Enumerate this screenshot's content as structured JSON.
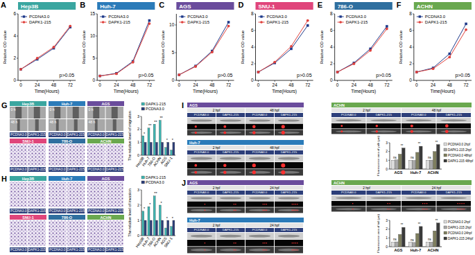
{
  "chart_data": [
    {
      "type": "line",
      "panel_label": "A",
      "title": "Hep3B",
      "x_label": "Time(Hours)",
      "y_label": "Relative OD value",
      "x": [
        0,
        24,
        48,
        72
      ],
      "xlim": [
        -4,
        80
      ],
      "xticks": [
        0,
        24,
        48,
        72
      ],
      "ylim": [
        0,
        6
      ],
      "yticks": [
        0,
        2,
        4,
        6
      ],
      "legend": "upper-left",
      "annotations": [
        "p>0.05"
      ],
      "series": [
        {
          "name": "PCDNA3.0",
          "color": "#1f3a8a",
          "marker": "square",
          "values": [
            1,
            1.9,
            2.9,
            4.8
          ]
        },
        {
          "name": "DAPK1-215",
          "color": "#e0413c",
          "marker": "circle",
          "values": [
            1,
            2.0,
            3.0,
            4.9
          ]
        }
      ]
    },
    {
      "type": "line",
      "panel_label": "B",
      "title": "Huh-7",
      "x_label": "Time(Hours)",
      "y_label": "Relative OD value",
      "x": [
        0,
        24,
        48,
        72
      ],
      "xlim": [
        -4,
        80
      ],
      "xticks": [
        0,
        24,
        48,
        72
      ],
      "ylim": [
        0,
        15
      ],
      "yticks": [
        0,
        5,
        10,
        15
      ],
      "legend": "upper-left",
      "annotations": [
        "p>0.05"
      ],
      "series": [
        {
          "name": "PCDNA3.0",
          "color": "#1f3a8a",
          "marker": "square",
          "values": [
            1,
            1.6,
            4.3,
            13.5
          ]
        },
        {
          "name": "DAPK1-215",
          "color": "#e0413c",
          "marker": "circle",
          "values": [
            1,
            1.5,
            4.1,
            12.8
          ]
        }
      ]
    },
    {
      "type": "line",
      "panel_label": "C",
      "title": "AGS",
      "x_label": "Time(Hours)",
      "y_label": "Relative OD value",
      "x": [
        0,
        24,
        48,
        72
      ],
      "xlim": [
        -4,
        80
      ],
      "xticks": [
        0,
        24,
        48,
        72
      ],
      "ylim": [
        0,
        12
      ],
      "yticks": [
        0,
        5,
        10
      ],
      "legend": "upper-left",
      "annotations": [
        "p>0.05"
      ],
      "series": [
        {
          "name": "PCDNA3.0",
          "color": "#1f3a8a",
          "marker": "square",
          "values": [
            1,
            2.6,
            5.3,
            10.5
          ]
        },
        {
          "name": "DAPK1-215",
          "color": "#e0413c",
          "marker": "circle",
          "values": [
            1,
            2.5,
            5.1,
            9.8
          ]
        }
      ]
    },
    {
      "type": "line",
      "panel_label": "D",
      "title": "SNU-1",
      "x_label": "Time(Hours)",
      "y_label": "Relative OD value",
      "x": [
        0,
        24,
        48,
        72
      ],
      "xlim": [
        -4,
        80
      ],
      "xticks": [
        0,
        24,
        48,
        72
      ],
      "ylim": [
        0,
        8
      ],
      "yticks": [
        0,
        2,
        4,
        6,
        8
      ],
      "legend": "upper-left",
      "annotations": [
        "p>0.05"
      ],
      "series": [
        {
          "name": "PCDNA3.0",
          "color": "#1f3a8a",
          "marker": "square",
          "values": [
            1,
            2.1,
            3.8,
            6.6
          ]
        },
        {
          "name": "DAPK1-215",
          "color": "#e0413c",
          "marker": "circle",
          "values": [
            1,
            2.2,
            4.1,
            7.2
          ]
        }
      ]
    },
    {
      "type": "line",
      "panel_label": "E",
      "title": "786-O",
      "x_label": "Time(Hours)",
      "y_label": "Relative OD value",
      "x": [
        0,
        24,
        48,
        72
      ],
      "xlim": [
        -4,
        80
      ],
      "xticks": [
        0,
        24,
        48,
        72
      ],
      "ylim": [
        0,
        8
      ],
      "yticks": [
        0,
        2,
        4,
        6,
        8
      ],
      "legend": "upper-left",
      "annotations": [
        "p>0.05"
      ],
      "series": [
        {
          "name": "PCDNA3.0",
          "color": "#1f3a8a",
          "marker": "square",
          "values": [
            1,
            2.1,
            3.8,
            6.5
          ]
        },
        {
          "name": "DAPK1-215",
          "color": "#e0413c",
          "marker": "circle",
          "values": [
            1,
            2.0,
            3.6,
            6.2
          ]
        }
      ]
    },
    {
      "type": "line",
      "panel_label": "F",
      "title": "ACHN",
      "x_label": "Time(Hours)",
      "y_label": "Relative OD value",
      "x": [
        0,
        24,
        48,
        72
      ],
      "xlim": [
        -4,
        80
      ],
      "xticks": [
        0,
        24,
        48,
        72
      ],
      "ylim": [
        0,
        8
      ],
      "yticks": [
        0,
        2,
        4,
        6,
        8
      ],
      "legend": "upper-left",
      "annotations": [
        "p>0.05"
      ],
      "series": [
        {
          "name": "PCDNA3.0",
          "color": "#1f3a8a",
          "marker": "square",
          "values": [
            1,
            1.5,
            3.2,
            6.8
          ]
        },
        {
          "name": "DAPK1-215",
          "color": "#e0413c",
          "marker": "circle",
          "values": [
            1,
            1.4,
            2.8,
            6.1
          ]
        }
      ]
    },
    {
      "type": "bar",
      "y_label": "The relative level of migration",
      "categories": [
        "Hep3B",
        "Huh-7",
        "786-O",
        "ACHN",
        "AGS",
        "SNU-1"
      ],
      "ylim": [
        0,
        3
      ],
      "yticks": [
        0,
        1,
        2,
        3
      ],
      "legend": "top",
      "annotations": [
        "*",
        "**",
        "**",
        "**",
        "*",
        "*"
      ],
      "series": [
        {
          "name": "DAPK1-215",
          "color": "#3fb4b0",
          "values": [
            1.5,
            2.1,
            2.4,
            2.7,
            0.6,
            0.4
          ]
        },
        {
          "name": "PCDNA3.0",
          "color": "#2d3f7a",
          "values": [
            1,
            1,
            1,
            1,
            1,
            1
          ]
        }
      ]
    },
    {
      "type": "bar",
      "y_label": "The relative level of invasion",
      "categories": [
        "Hep3B",
        "Huh-7",
        "786-O",
        "ACHN",
        "AGS",
        "SNU-1"
      ],
      "ylim": [
        0,
        3
      ],
      "yticks": [
        0,
        1,
        2,
        3
      ],
      "legend": "top",
      "annotations": [
        "*",
        "*",
        "**",
        "*",
        "*",
        "*"
      ],
      "series": [
        {
          "name": "DAPK1-215",
          "color": "#3fb4b0",
          "values": [
            1.6,
            1.9,
            2.6,
            2.0,
            0.5,
            0.6
          ]
        },
        {
          "name": "PCDNA3.0",
          "color": "#2d3f7a",
          "values": [
            1,
            1,
            1,
            1,
            1,
            1
          ]
        }
      ]
    },
    {
      "type": "bar",
      "y_label": "Fluorescence area of yolk (μm)",
      "categories": [
        "AGS",
        "Huh-7",
        "ACHN"
      ],
      "ylim": [
        0,
        3
      ],
      "yticks": [
        0,
        1,
        2,
        3
      ],
      "legend": "right",
      "annotations": [
        [
          "ns",
          "**"
        ],
        [
          "ns",
          "**"
        ],
        [
          "ns",
          "**"
        ]
      ],
      "series": [
        {
          "name": "PCDNA3.0 2hpf",
          "color": "#dcdcdc",
          "values": [
            1.0,
            1.0,
            1.0
          ]
        },
        {
          "name": "DAPK1-215 2hpf",
          "color": "#a8a8a8",
          "values": [
            1.05,
            0.98,
            1.02
          ]
        },
        {
          "name": "PCDNA3.0 48hpf",
          "color": "#7f7f5f",
          "values": [
            1.7,
            1.9,
            2.0
          ]
        },
        {
          "name": "DAPK1-215 48hpf",
          "color": "#3a3a3a",
          "values": [
            2.4,
            2.6,
            2.8
          ]
        }
      ]
    },
    {
      "type": "bar",
      "y_label": "Fluorescence area of tail (μm)",
      "categories": [
        "AGS",
        "Huh-7",
        "ACHN"
      ],
      "ylim": [
        0,
        3
      ],
      "yticks": [
        0,
        1,
        2,
        3
      ],
      "legend": "right",
      "annotations": [
        [
          "ns",
          "**"
        ],
        [
          "ns",
          "**"
        ],
        [
          "ns",
          "**"
        ]
      ],
      "series": [
        {
          "name": "PCDNA3.0 2hpf",
          "color": "#dcdcdc",
          "values": [
            0.5,
            0.5,
            0.5
          ]
        },
        {
          "name": "DAPK1-215 2hpf",
          "color": "#a8a8a8",
          "values": [
            0.55,
            0.48,
            0.52
          ]
        },
        {
          "name": "PCDNA3.0 24hpf",
          "color": "#7f7f5f",
          "values": [
            1.4,
            1.5,
            1.8
          ]
        },
        {
          "name": "DAPK1-215 24hpf",
          "color": "#3a3a3a",
          "values": [
            2.2,
            2.3,
            2.7
          ]
        }
      ]
    }
  ],
  "image_panels": [
    {
      "panel_label": "G",
      "row_labels": [
        "0 h",
        "48 h"
      ],
      "groups": [
        {
          "title": "Hep3B",
          "color": "#3aa6a0",
          "type": "wound",
          "conditions": [
            "PCDNA3.0",
            "DAPK1-215"
          ]
        },
        {
          "title": "Huh-7",
          "color": "#2b7bb9",
          "type": "wound",
          "conditions": [
            "PCDNA3.0",
            "DAPK1-215"
          ]
        },
        {
          "title": "AGS",
          "color": "#6a4c9c",
          "type": "wound",
          "conditions": [
            "PCDNA3.0",
            "DAPK1-215"
          ]
        },
        {
          "title": "SNU-1",
          "color": "#e0457b",
          "type": "transwell",
          "conditions": [
            "PCDNA3.0",
            "DAPK1-215"
          ]
        },
        {
          "title": "786-O",
          "color": "#2f6f9f",
          "type": "transwell",
          "conditions": [
            "PCDNA3.0",
            "DAPK1-215"
          ]
        },
        {
          "title": "ACHN",
          "color": "#6aa84f",
          "type": "transwell",
          "conditions": [
            "PCDNA3.0",
            "DAPK1-215"
          ]
        }
      ]
    },
    {
      "panel_label": "H",
      "groups": [
        {
          "title": "Hep3B",
          "color": "#3aa6a0",
          "type": "transwell",
          "conditions": [
            "PCDNA3.0",
            "DAPK1-215"
          ]
        },
        {
          "title": "Huh-7",
          "color": "#2b7bb9",
          "type": "transwell",
          "conditions": [
            "PCDNA3.0",
            "DAPK1-215"
          ]
        },
        {
          "title": "AGS",
          "color": "#6a4c9c",
          "type": "transwell",
          "conditions": [
            "PCDNA3.0",
            "DAPK1-215"
          ]
        },
        {
          "title": "SNU-1",
          "color": "#e0457b",
          "type": "transwell",
          "conditions": [
            "PCDNA3.0",
            "DAPK1-215"
          ]
        },
        {
          "title": "786-O",
          "color": "#2f6f9f",
          "type": "transwell",
          "conditions": [
            "PCDNA3.0",
            "DAPK1-215"
          ]
        },
        {
          "title": "ACHN",
          "color": "#6aa84f",
          "type": "transwell",
          "conditions": [
            "PCDNA3.0",
            "DAPK1-215"
          ]
        }
      ]
    },
    {
      "panel_label": "I",
      "groups": [
        {
          "title": "AGS",
          "color": "#6a4c9c",
          "type": "zebrafish-yolk",
          "times": [
            "2 hpf",
            "48 hpf"
          ],
          "conditions": [
            "PCDNA3.0",
            "DAPK1-215"
          ]
        },
        {
          "title": "ACHN",
          "color": "#6aa84f",
          "type": "zebrafish-yolk",
          "times": [
            "2 hpf",
            "48 hpf"
          ],
          "conditions": [
            "PCDNA3.0",
            "DAPK1-215"
          ]
        },
        {
          "title": "Huh-7",
          "color": "#2b7bb9",
          "type": "zebrafish-yolk",
          "times": [
            "2 hpf",
            "48 hpf"
          ],
          "conditions": [
            "PCDNA3.0",
            "DAPK1-215"
          ]
        }
      ]
    },
    {
      "panel_label": "J",
      "groups": [
        {
          "title": "AGS",
          "color": "#6a4c9c",
          "type": "zebrafish-tail",
          "times": [
            "2 hpf",
            "24 hpf"
          ],
          "conditions": [
            "PCDNA3.0",
            "DAPK1-215"
          ]
        },
        {
          "title": "ACHN",
          "color": "#6aa84f",
          "type": "zebrafish-tail",
          "times": [
            "2 hpf",
            "24 hpf"
          ],
          "conditions": [
            "PCDNA3.0",
            "DAPK1-215"
          ]
        },
        {
          "title": "Huh-7",
          "color": "#2b7bb9",
          "type": "zebrafish-tail",
          "times": [
            "2 hpf",
            "24 hpf"
          ],
          "conditions": [
            "PCDNA3.0",
            "DAPK1-215"
          ]
        }
      ]
    }
  ]
}
